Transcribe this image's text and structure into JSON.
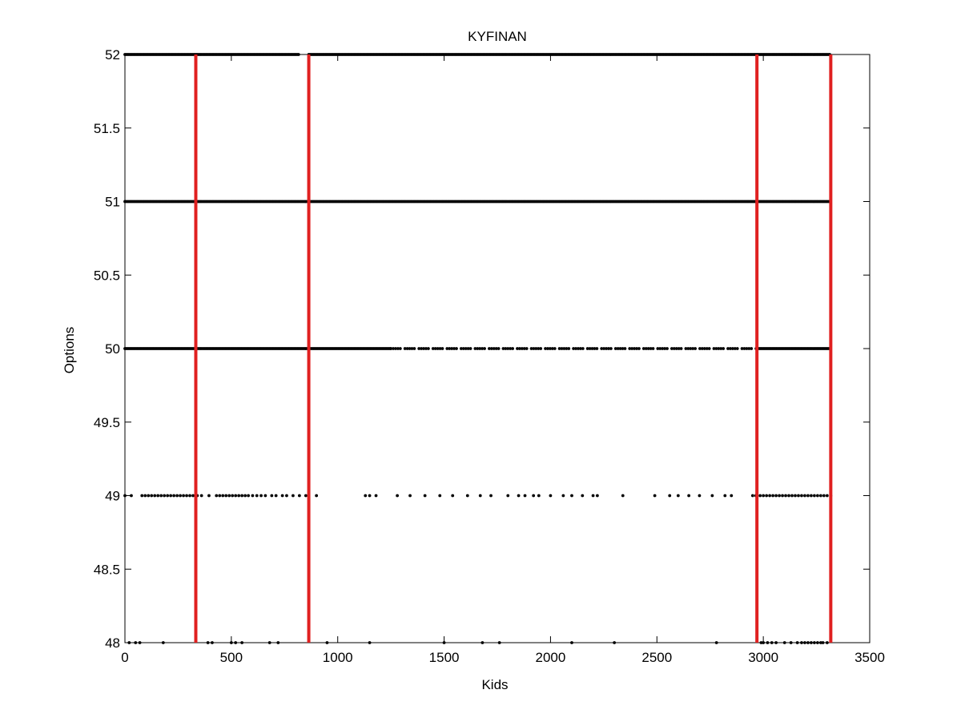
{
  "chart_data": {
    "type": "scatter",
    "title": "KYFINAN",
    "xlabel": "Kids",
    "ylabel": "Options",
    "xlim": [
      0,
      3500
    ],
    "ylim": [
      48,
      52
    ],
    "xticks": [
      0,
      500,
      1000,
      1500,
      2000,
      2500,
      3000,
      3500
    ],
    "yticks": [
      48,
      48.5,
      49,
      49.5,
      50,
      50.5,
      51,
      51.5,
      52
    ],
    "xtick_labels": [
      "0",
      "500",
      "1000",
      "1500",
      "2000",
      "2500",
      "3000",
      "3500"
    ],
    "ytick_labels": [
      "48",
      "48.5",
      "49",
      "49.5",
      "50",
      "50.5",
      "51",
      "51.5",
      "52"
    ],
    "grid": false,
    "marker_color": "#000000",
    "vline_color": "#e02020",
    "vlines": [
      333,
      864,
      2970,
      3317
    ],
    "series": [
      {
        "y": 52,
        "points": [],
        "dense_ranges": [
          [
            0,
            3317
          ]
        ],
        "gaps": [
          [
            820,
            860
          ]
        ]
      },
      {
        "y": 51,
        "points": [],
        "dense_ranges": [
          [
            0,
            3317
          ]
        ],
        "gaps": []
      },
      {
        "y": 50,
        "points": [],
        "dense_ranges": [
          [
            0,
            1250
          ],
          [
            2970,
            3317
          ]
        ],
        "sparse_ranges": [
          [
            1250,
            2970
          ]
        ]
      },
      {
        "y": 49,
        "points": [
          0,
          30,
          80,
          95,
          110,
          125,
          140,
          155,
          170,
          185,
          200,
          215,
          230,
          245,
          260,
          275,
          290,
          305,
          320,
          340,
          360,
          395,
          430,
          445,
          460,
          475,
          490,
          505,
          520,
          535,
          550,
          565,
          580,
          600,
          620,
          640,
          660,
          690,
          710,
          740,
          760,
          790,
          820,
          850,
          900,
          1130,
          1150,
          1180,
          1280,
          1340,
          1410,
          1480,
          1540,
          1610,
          1670,
          1720,
          1800,
          1850,
          1880,
          1920,
          1945,
          2000,
          2060,
          2100,
          2150,
          2200,
          2220,
          2340,
          2490,
          2560,
          2600,
          2650,
          2700,
          2760,
          2820,
          2850,
          2950,
          2965,
          2970,
          2985,
          3000,
          3015,
          3030,
          3045,
          3060,
          3075,
          3090,
          3105,
          3120,
          3135,
          3150,
          3165,
          3180,
          3195,
          3210,
          3225,
          3240,
          3255,
          3270,
          3285,
          3300,
          3317
        ],
        "dense_ranges": [],
        "gaps": []
      },
      {
        "y": 48,
        "points": [
          20,
          50,
          70,
          180,
          390,
          410,
          500,
          520,
          550,
          680,
          720,
          950,
          1150,
          1500,
          1680,
          1760,
          2100,
          2300,
          2780,
          2990,
          3000,
          3020,
          3040,
          3060,
          3100,
          3130,
          3160,
          3180,
          3195,
          3210,
          3225,
          3240,
          3255,
          3270,
          3280,
          3300
        ],
        "dense_ranges": [],
        "gaps": []
      }
    ]
  }
}
